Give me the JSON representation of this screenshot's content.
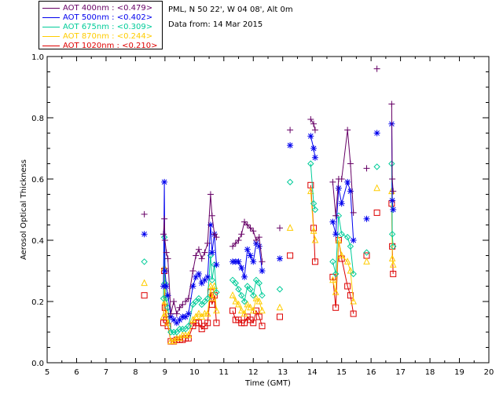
{
  "header": {
    "site_line": "PML, N 50 22', W 04 08', Alt 0m",
    "date_line": "Data from: 14 Mar 2015"
  },
  "legend": [
    {
      "label": "AOT  400nm : <0.479>",
      "color": "#660066"
    },
    {
      "label": "AOT  500nm : <0.402>",
      "color": "#0000ee"
    },
    {
      "label": "AOT  675nm : <0.309>",
      "color": "#00cc99"
    },
    {
      "label": "AOT  870nm : <0.244>",
      "color": "#ffcc00"
    },
    {
      "label": "AOT 1020nm : <0.210>",
      "color": "#dd0000"
    }
  ],
  "chart_data": {
    "type": "scatter",
    "xlabel": "Time (GMT)",
    "ylabel": "Aerosol Optical Thickness",
    "xlim": [
      5,
      20
    ],
    "ylim": [
      0.0,
      1.0
    ],
    "xticks": [
      "5",
      "6",
      "7",
      "8",
      "9",
      "10",
      "11",
      "12",
      "13",
      "14",
      "15",
      "16",
      "17",
      "18",
      "19",
      "20"
    ],
    "yticks": [
      "0.0",
      "0.2",
      "0.4",
      "0.6",
      "0.8",
      "1.0"
    ],
    "x": [
      8.3,
      8.95,
      8.98,
      9.0,
      9.05,
      9.1,
      9.2,
      9.3,
      9.4,
      9.5,
      9.6,
      9.7,
      9.8,
      9.95,
      10.05,
      10.15,
      10.25,
      10.35,
      10.45,
      10.55,
      10.6,
      10.68,
      10.75,
      11.3,
      11.4,
      11.5,
      11.6,
      11.7,
      11.8,
      11.9,
      12.0,
      12.1,
      12.2,
      12.3,
      12.9,
      13.25,
      13.95,
      14.05,
      14.1,
      14.7,
      14.8,
      14.9,
      15.0,
      15.2,
      15.3,
      15.4,
      15.85,
      16.2,
      16.7,
      16.72,
      16.75
    ],
    "series": [
      {
        "name": "AOT  400nm",
        "marker": "plus",
        "values": [
          0.485,
          0.42,
          0.47,
          0.4,
          0.36,
          0.34,
          0.16,
          0.2,
          0.16,
          0.18,
          0.19,
          0.2,
          0.21,
          0.3,
          0.35,
          0.37,
          0.34,
          0.36,
          0.39,
          0.55,
          0.48,
          0.42,
          0.41,
          0.38,
          0.39,
          0.4,
          0.42,
          0.46,
          0.45,
          0.44,
          0.43,
          0.4,
          0.41,
          0.33,
          0.44,
          0.76,
          0.795,
          0.78,
          0.76,
          0.59,
          0.48,
          0.6,
          0.6,
          0.76,
          0.65,
          0.49,
          0.635,
          0.96,
          0.845,
          0.6,
          0.56
        ]
      },
      {
        "name": "AOT  500nm",
        "marker": "star",
        "values": [
          0.42,
          0.25,
          0.59,
          0.3,
          0.25,
          0.22,
          0.15,
          0.14,
          0.13,
          0.14,
          0.15,
          0.15,
          0.16,
          0.25,
          0.28,
          0.29,
          0.26,
          0.27,
          0.28,
          0.45,
          0.36,
          0.42,
          0.32,
          0.33,
          0.33,
          0.33,
          0.31,
          0.28,
          0.37,
          0.35,
          0.33,
          0.39,
          0.38,
          0.3,
          0.34,
          0.71,
          0.74,
          0.7,
          0.67,
          0.46,
          0.42,
          0.57,
          0.52,
          0.59,
          0.56,
          0.4,
          0.47,
          0.75,
          0.78,
          0.53,
          0.5
        ]
      },
      {
        "name": "AOT  675nm",
        "marker": "diamond",
        "values": [
          0.33,
          0.21,
          0.41,
          0.26,
          0.21,
          0.18,
          0.1,
          0.1,
          0.1,
          0.11,
          0.11,
          0.11,
          0.12,
          0.19,
          0.2,
          0.21,
          0.19,
          0.2,
          0.21,
          0.35,
          0.27,
          0.32,
          0.23,
          0.27,
          0.26,
          0.24,
          0.22,
          0.2,
          0.25,
          0.24,
          0.22,
          0.27,
          0.26,
          0.22,
          0.24,
          0.59,
          0.65,
          0.52,
          0.5,
          0.33,
          0.29,
          0.48,
          0.42,
          0.41,
          0.38,
          0.29,
          0.36,
          0.64,
          0.65,
          0.42,
          0.38
        ]
      },
      {
        "name": "AOT  870nm",
        "marker": "triangle",
        "values": [
          0.26,
          0.15,
          0.31,
          0.2,
          0.16,
          0.13,
          0.07,
          0.07,
          0.08,
          0.08,
          0.09,
          0.09,
          0.09,
          0.14,
          0.15,
          0.16,
          0.15,
          0.16,
          0.16,
          0.25,
          0.21,
          0.25,
          0.17,
          0.22,
          0.2,
          0.19,
          0.17,
          0.16,
          0.19,
          0.18,
          0.17,
          0.21,
          0.2,
          0.17,
          0.18,
          0.44,
          0.56,
          0.43,
          0.4,
          0.27,
          0.23,
          0.4,
          0.35,
          0.33,
          0.3,
          0.2,
          0.33,
          0.57,
          0.56,
          0.34,
          0.32
        ]
      },
      {
        "name": "AOT 1020nm",
        "marker": "square",
        "values": [
          0.22,
          0.13,
          0.3,
          0.18,
          0.14,
          0.12,
          0.07,
          0.07,
          0.075,
          0.075,
          0.075,
          0.08,
          0.08,
          0.12,
          0.13,
          0.13,
          0.11,
          0.12,
          0.13,
          0.23,
          0.19,
          0.22,
          0.13,
          0.17,
          0.14,
          0.14,
          0.13,
          0.13,
          0.15,
          0.14,
          0.13,
          0.17,
          0.15,
          0.12,
          0.15,
          0.35,
          0.58,
          0.44,
          0.33,
          0.28,
          0.18,
          0.4,
          0.34,
          0.25,
          0.22,
          0.16,
          0.35,
          0.49,
          0.52,
          0.38,
          0.29
        ]
      }
    ],
    "segments": [
      [
        1,
        10
      ],
      [
        11,
        22
      ],
      [
        23,
        33
      ],
      [
        36,
        38
      ],
      [
        39,
        45
      ],
      [
        48,
        50
      ]
    ],
    "grid": false,
    "legend_position": "top-left-outside"
  }
}
